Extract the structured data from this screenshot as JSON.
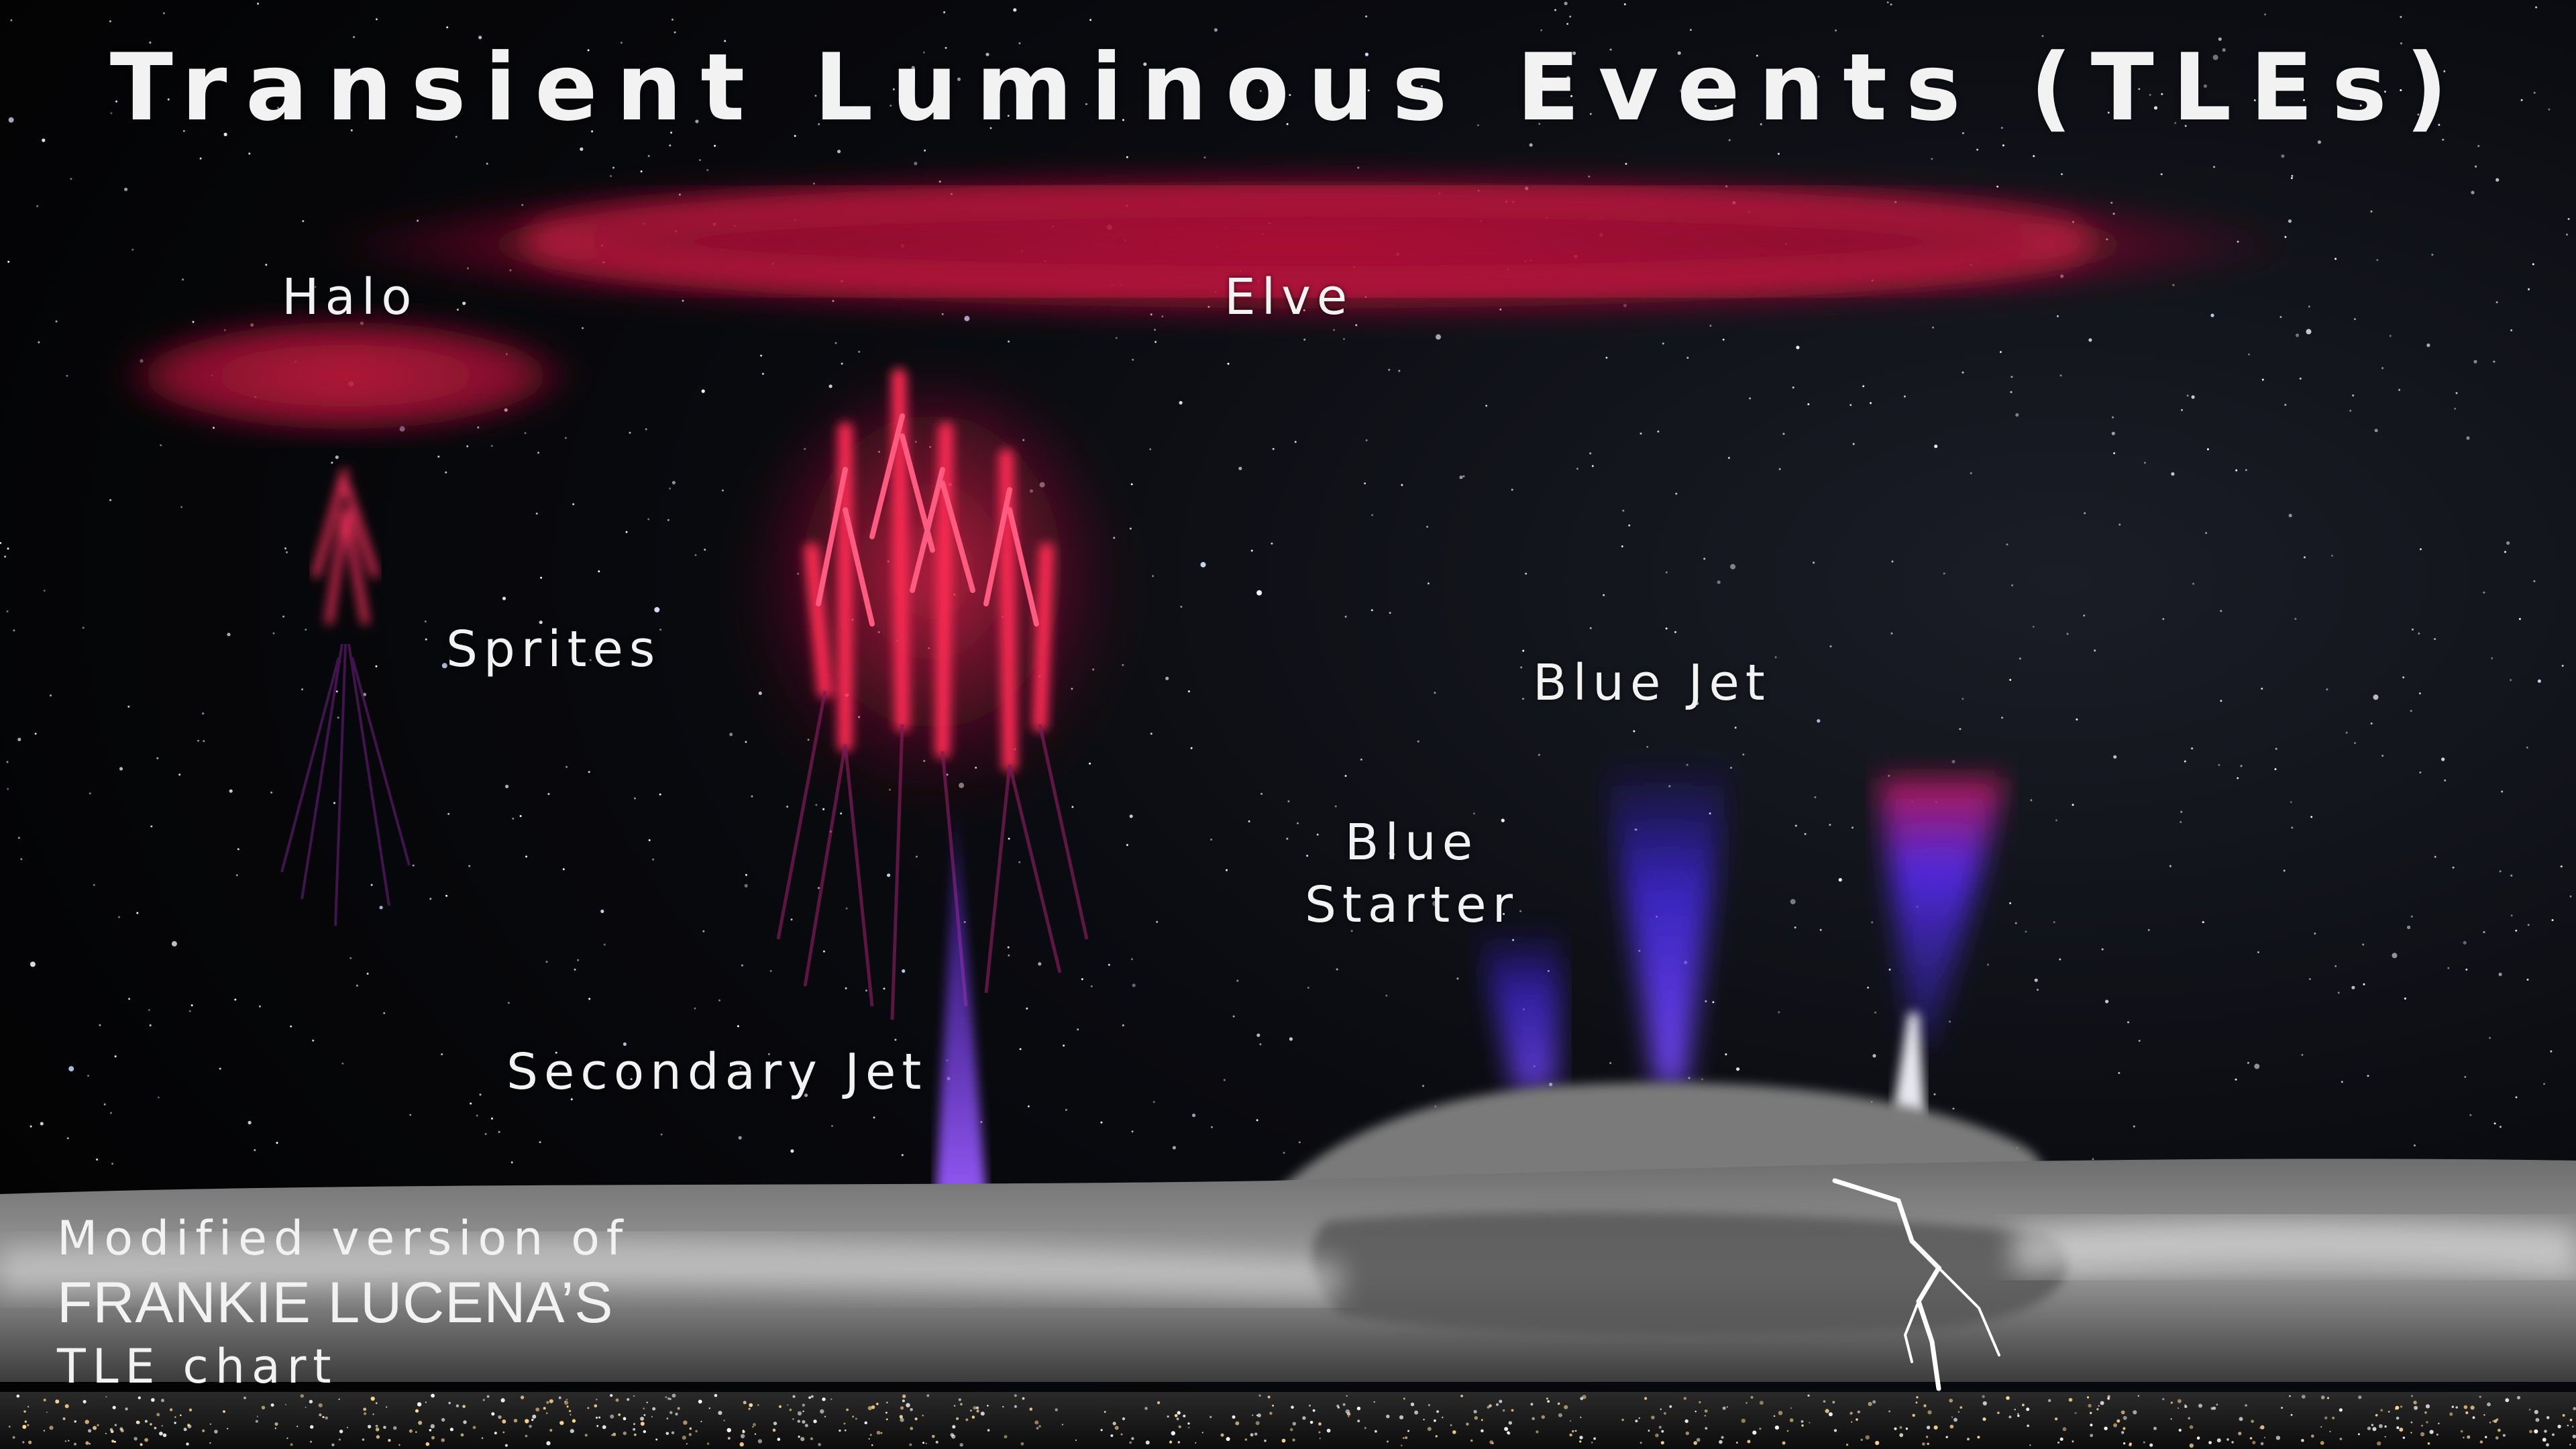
{
  "title": "Transient Luminous Events (TLEs)",
  "labels": {
    "halo": "Halo",
    "elve": "Elve",
    "sprites": "Sprites",
    "blue_jet": "Blue Jet",
    "blue_starter_line1": "Blue",
    "blue_starter_line2": "Starter",
    "secondary_jet": "Secondary Jet"
  },
  "credit": {
    "line1": "Modified version of",
    "line2": "FRANKIE LUCENA’S",
    "line3": "TLE chart"
  },
  "colors": {
    "sky": "#050608",
    "sprite_red": "#e8204a",
    "elve_red": "#c0123a",
    "jet_blue": "#4a2cff",
    "cloud_gray": "#8a8a8a",
    "text": "#f2f2f2"
  }
}
